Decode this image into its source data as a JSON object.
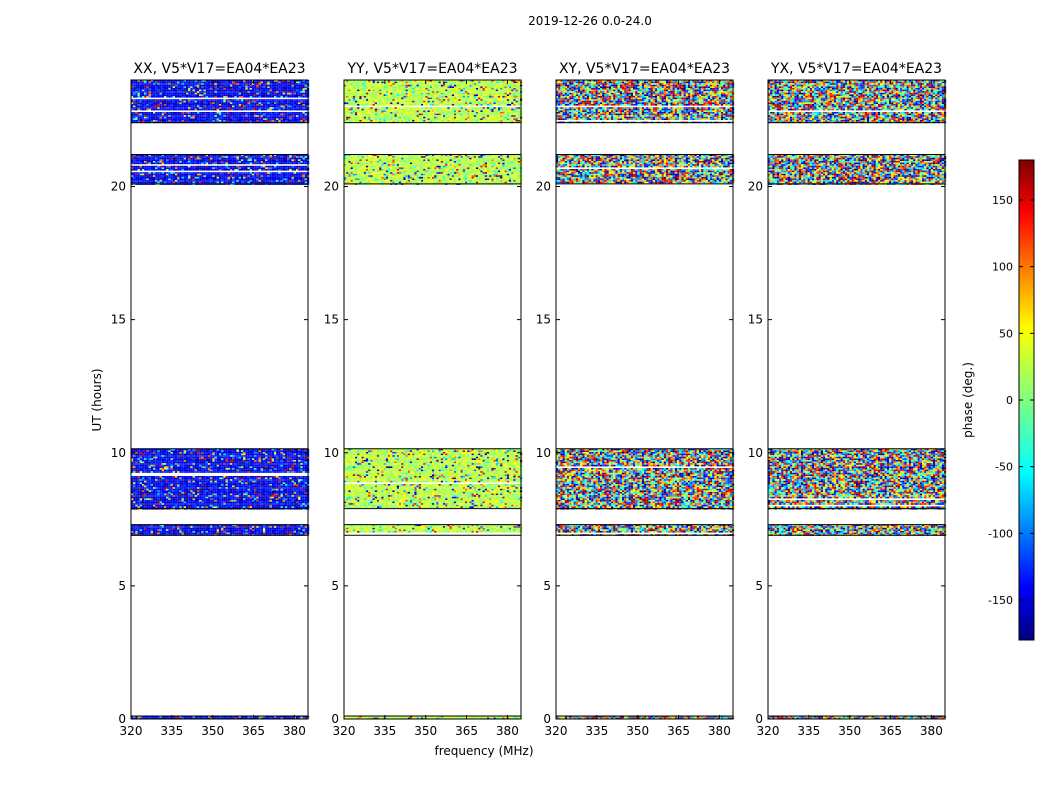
{
  "suptitle": "2019-12-26 0.0-24.0",
  "colors": {
    "colormap": "jet",
    "axes": "#000000",
    "background": "#ffffff"
  },
  "chart_data": {
    "type": "heatmap",
    "xlabel": "frequency (MHz)",
    "ylabel": "UT (hours)",
    "xlim": [
      320,
      385
    ],
    "ylim": [
      0,
      24
    ],
    "xticks": [
      320,
      335,
      350,
      365,
      380
    ],
    "yticks": [
      0,
      5,
      10,
      15,
      20
    ],
    "value_label": "phase (deg.)",
    "value_range": [
      -180,
      180
    ],
    "colorbar_ticks": [
      -150,
      -100,
      -50,
      0,
      50,
      100,
      150
    ],
    "panels": [
      {
        "title": "XX, V5*V17=EA04*EA23",
        "dominant_phase_deg": -140
      },
      {
        "title": "YY, V5*V17=EA04*EA23",
        "dominant_phase_deg": 20
      },
      {
        "title": "XY, V5*V17=EA04*EA23",
        "dominant_phase_deg": null
      },
      {
        "title": "YX, V5*V17=EA04*EA23",
        "dominant_phase_deg": null
      }
    ],
    "data_blocks_ut_hours": [
      [
        0.0,
        0.05
      ],
      [
        6.9,
        7.3
      ],
      [
        7.9,
        10.15
      ],
      [
        20.1,
        21.2
      ],
      [
        22.4,
        24.0
      ]
    ],
    "notes_on_rendering": "noise texture"
  }
}
